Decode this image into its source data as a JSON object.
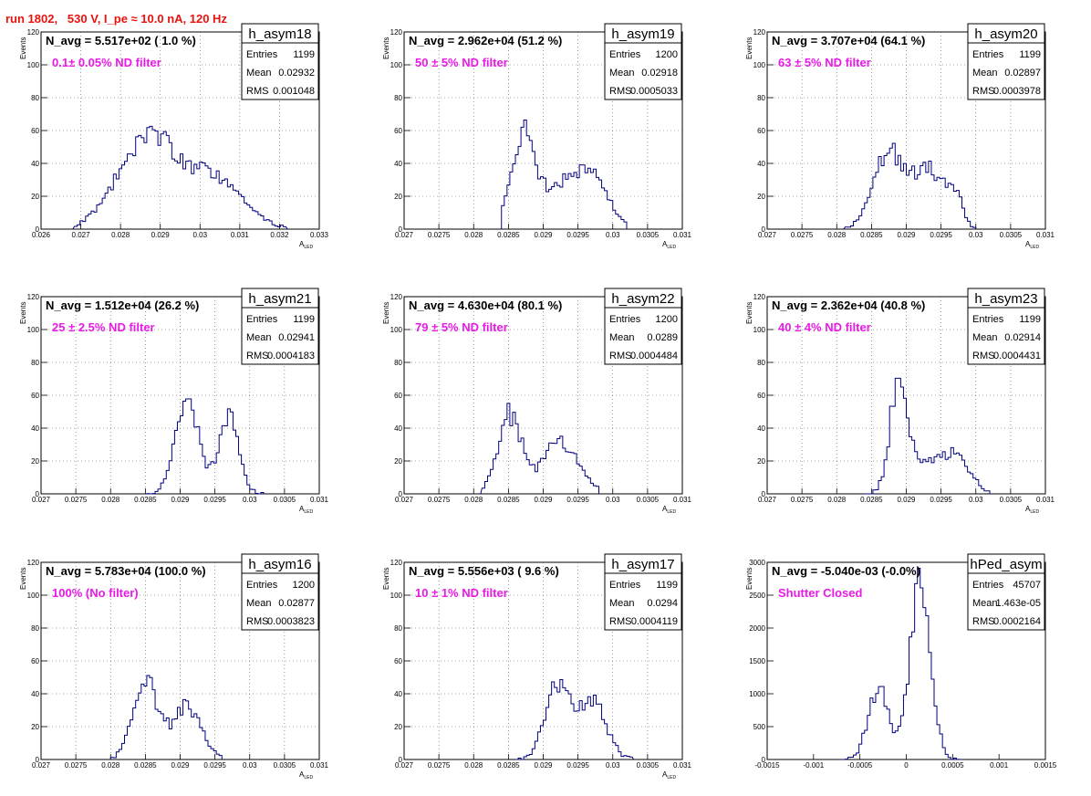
{
  "header": {
    "title": "run 1802,   530 V, I_pe ≈ 10.0 nA, 120 Hz",
    "title_color": "#e8130e"
  },
  "colors": {
    "histogram": "#00007f",
    "note": "#ea1ae6",
    "grid": "#555555"
  },
  "chart_data": [
    {
      "type": "bar",
      "name": "h_asym18",
      "title": "N_avg = 5.517e+02 ( 1.0 %)",
      "annotation": "0.1± 0.05% ND filter",
      "stats": [
        [
          "Entries",
          "1199"
        ],
        [
          "Mean",
          "0.02932"
        ],
        [
          "RMS",
          "0.001048"
        ]
      ],
      "ylabel": "Events",
      "xlabel": "A_LED",
      "xlim": [
        0.026,
        0.033
      ],
      "ylim": [
        0,
        120
      ],
      "x_ticks": [
        "0.026",
        "0.027",
        "0.028",
        "0.029",
        "0.03",
        "0.031",
        "0.032",
        "0.033"
      ],
      "y_ticks": [
        "0",
        "20",
        "40",
        "60",
        "80",
        "100",
        "120"
      ],
      "grid": true,
      "peaks": [
        [
          0.0285,
          40,
          0.0007
        ],
        [
          0.0295,
          28,
          0.0008
        ],
        [
          0.0307,
          18,
          0.0006
        ]
      ],
      "bin_range": [
        0.0268,
        0.0322
      ],
      "bins": 100,
      "seed": 18
    },
    {
      "type": "bar",
      "name": "h_asym19",
      "title": "N_avg = 2.962e+04 (51.2 %)",
      "annotation": "50 ± 5% ND filter",
      "stats": [
        [
          "Entries",
          "1200"
        ],
        [
          "Mean",
          "0.02918"
        ],
        [
          "RMS",
          "0.0005033"
        ]
      ],
      "ylabel": "Events",
      "xlabel": "A_LED",
      "xlim": [
        0.027,
        0.031
      ],
      "ylim": [
        0,
        120
      ],
      "x_ticks": [
        "0.027",
        "0.0275",
        "0.028",
        "0.0285",
        "0.029",
        "0.0295",
        "0.03",
        "0.0305",
        "0.031"
      ],
      "y_ticks": [
        "0",
        "20",
        "40",
        "60",
        "80",
        "100",
        "120"
      ],
      "grid": true,
      "peaks": [
        [
          0.02872,
          58,
          0.00018
        ],
        [
          0.02965,
          36,
          0.00025
        ],
        [
          0.0292,
          18,
          0.0002
        ]
      ],
      "bin_range": [
        0.0284,
        0.0302
      ],
      "bins": 100,
      "seed": 19
    },
    {
      "type": "bar",
      "name": "h_asym20",
      "title": "N_avg = 3.707e+04 (64.1 %)",
      "annotation": "63 ± 5% ND filter",
      "stats": [
        [
          "Entries",
          "1199"
        ],
        [
          "Mean",
          "0.02897"
        ],
        [
          "RMS",
          "0.0003978"
        ]
      ],
      "ylabel": "Events",
      "xlabel": "A_LED",
      "xlim": [
        0.027,
        0.031
      ],
      "ylim": [
        0,
        120
      ],
      "x_ticks": [
        "0.027",
        "0.0275",
        "0.028",
        "0.0285",
        "0.029",
        "0.0295",
        "0.03",
        "0.0305",
        "0.031"
      ],
      "y_ticks": [
        "0",
        "20",
        "40",
        "60",
        "80",
        "100",
        "120"
      ],
      "grid": true,
      "peaks": [
        [
          0.02875,
          48,
          0.00022
        ],
        [
          0.0293,
          36,
          0.0002
        ],
        [
          0.02968,
          20,
          0.00012
        ]
      ],
      "bin_range": [
        0.0281,
        0.03
      ],
      "bins": 100,
      "seed": 20
    },
    {
      "type": "bar",
      "name": "h_asym21",
      "title": "N_avg = 1.512e+04 (26.2 %)",
      "annotation": "25 ± 2.5% ND filter",
      "stats": [
        [
          "Entries",
          "1199"
        ],
        [
          "Mean",
          "0.02941"
        ],
        [
          "RMS",
          "0.0004183"
        ]
      ],
      "ylabel": "Events",
      "xlabel": "A_LED",
      "xlim": [
        0.027,
        0.031
      ],
      "ylim": [
        0,
        120
      ],
      "x_ticks": [
        "0.027",
        "0.0275",
        "0.028",
        "0.0285",
        "0.029",
        "0.0295",
        "0.03",
        "0.0305",
        "0.031"
      ],
      "y_ticks": [
        "0",
        "20",
        "40",
        "60",
        "80",
        "100",
        "120"
      ],
      "grid": true,
      "peaks": [
        [
          0.0291,
          55,
          0.00017
        ],
        [
          0.0297,
          50,
          0.00014
        ]
      ],
      "bin_range": [
        0.0285,
        0.0302
      ],
      "bins": 100,
      "seed": 21
    },
    {
      "type": "bar",
      "name": "h_asym22",
      "title": "N_avg = 4.630e+04 (80.1 %)",
      "annotation": "79 ± 5% ND filter",
      "stats": [
        [
          "Entries",
          "1200"
        ],
        [
          "Mean",
          "0.0289"
        ],
        [
          "RMS",
          "0.0004484"
        ]
      ],
      "ylabel": "Events",
      "xlabel": "A_LED",
      "xlim": [
        0.027,
        0.031
      ],
      "ylim": [
        0,
        120
      ],
      "x_ticks": [
        "0.027",
        "0.0275",
        "0.028",
        "0.0285",
        "0.029",
        "0.0295",
        "0.03",
        "0.0305",
        "0.031"
      ],
      "y_ticks": [
        "0",
        "20",
        "40",
        "60",
        "80",
        "100",
        "120"
      ],
      "grid": true,
      "peaks": [
        [
          0.02852,
          48,
          0.00017
        ],
        [
          0.02925,
          32,
          0.00025
        ]
      ],
      "bin_range": [
        0.0281,
        0.0298
      ],
      "bins": 100,
      "seed": 22
    },
    {
      "type": "bar",
      "name": "h_asym23",
      "title": "N_avg = 2.362e+04 (40.8 %)",
      "annotation": "40 ± 4% ND filter",
      "stats": [
        [
          "Entries",
          "1199"
        ],
        [
          "Mean",
          "0.02914"
        ],
        [
          "RMS",
          "0.0004431"
        ]
      ],
      "ylabel": "Events",
      "xlabel": "A_LED",
      "xlim": [
        0.027,
        0.031
      ],
      "ylim": [
        0,
        120
      ],
      "x_ticks": [
        "0.027",
        "0.0275",
        "0.028",
        "0.0285",
        "0.029",
        "0.0295",
        "0.03",
        "0.0305",
        "0.031"
      ],
      "y_ticks": [
        "0",
        "20",
        "40",
        "60",
        "80",
        "100",
        "120"
      ],
      "grid": true,
      "peaks": [
        [
          0.0289,
          70,
          0.00013
        ],
        [
          0.0297,
          22,
          0.00022
        ],
        [
          0.0293,
          14,
          0.0002
        ]
      ],
      "bin_range": [
        0.0284,
        0.0302
      ],
      "bins": 100,
      "seed": 23
    },
    {
      "type": "bar",
      "name": "h_asym16",
      "title": "N_avg = 5.783e+04 (100.0 %)",
      "annotation": "100% (No filter)",
      "stats": [
        [
          "Entries",
          "1200"
        ],
        [
          "Mean",
          "0.02877"
        ],
        [
          "RMS",
          "0.0003823"
        ]
      ],
      "ylabel": "Events",
      "xlabel": "A_LED",
      "xlim": [
        0.027,
        0.031
      ],
      "ylim": [
        0,
        120
      ],
      "x_ticks": [
        "0.027",
        "0.0275",
        "0.028",
        "0.0285",
        "0.029",
        "0.0295",
        "0.03",
        "0.0305",
        "0.031"
      ],
      "y_ticks": [
        "0",
        "20",
        "40",
        "60",
        "80",
        "100",
        "120"
      ],
      "grid": true,
      "peaks": [
        [
          0.0285,
          48,
          0.00018
        ],
        [
          0.0291,
          32,
          0.0002
        ]
      ],
      "bin_range": [
        0.028,
        0.0296
      ],
      "bins": 100,
      "seed": 16
    },
    {
      "type": "bar",
      "name": "h_asym17",
      "title": "N_avg = 5.556e+03 ( 9.6 %)",
      "annotation": "10 ± 1% ND filter",
      "stats": [
        [
          "Entries",
          "1199"
        ],
        [
          "Mean",
          "0.0294"
        ],
        [
          "RMS",
          "0.0004119"
        ]
      ],
      "ylabel": "Events",
      "xlabel": "A_LED",
      "xlim": [
        0.027,
        0.031
      ],
      "ylim": [
        0,
        120
      ],
      "x_ticks": [
        "0.027",
        "0.0275",
        "0.028",
        "0.0285",
        "0.029",
        "0.0295",
        "0.03",
        "0.0305",
        "0.031"
      ],
      "y_ticks": [
        "0",
        "20",
        "40",
        "60",
        "80",
        "100",
        "120"
      ],
      "grid": true,
      "peaks": [
        [
          0.0292,
          46,
          0.00017
        ],
        [
          0.0297,
          36,
          0.0002
        ]
      ],
      "bin_range": [
        0.0286,
        0.0303
      ],
      "bins": 100,
      "seed": 17
    },
    {
      "type": "bar",
      "name": "hPed_asym",
      "title": "N_avg = -5.040e-03 (-0.0%)",
      "annotation": "Shutter Closed",
      "stats": [
        [
          "Entries",
          "45707"
        ],
        [
          "Mean",
          "1.463e-05"
        ],
        [
          "RMS",
          "0.0002164"
        ]
      ],
      "ylabel": "Events",
      "xlabel": "",
      "xlim": [
        -0.0015,
        0.0015
      ],
      "ylim": [
        0,
        3000
      ],
      "x_ticks": [
        "-0.0015",
        "-0.001",
        "-0.0005",
        "0",
        "0.0005",
        "0.001",
        "0.0015"
      ],
      "y_ticks": [
        "0",
        "500",
        "1000",
        "1500",
        "2000",
        "2500",
        "3000"
      ],
      "grid": false,
      "peaks": [
        [
          0.00015,
          2650,
          0.00011
        ],
        [
          -0.0003,
          1050,
          0.00011
        ]
      ],
      "bin_range": [
        -0.0007,
        0.0006
      ],
      "bins": 100,
      "seed": 99
    }
  ]
}
